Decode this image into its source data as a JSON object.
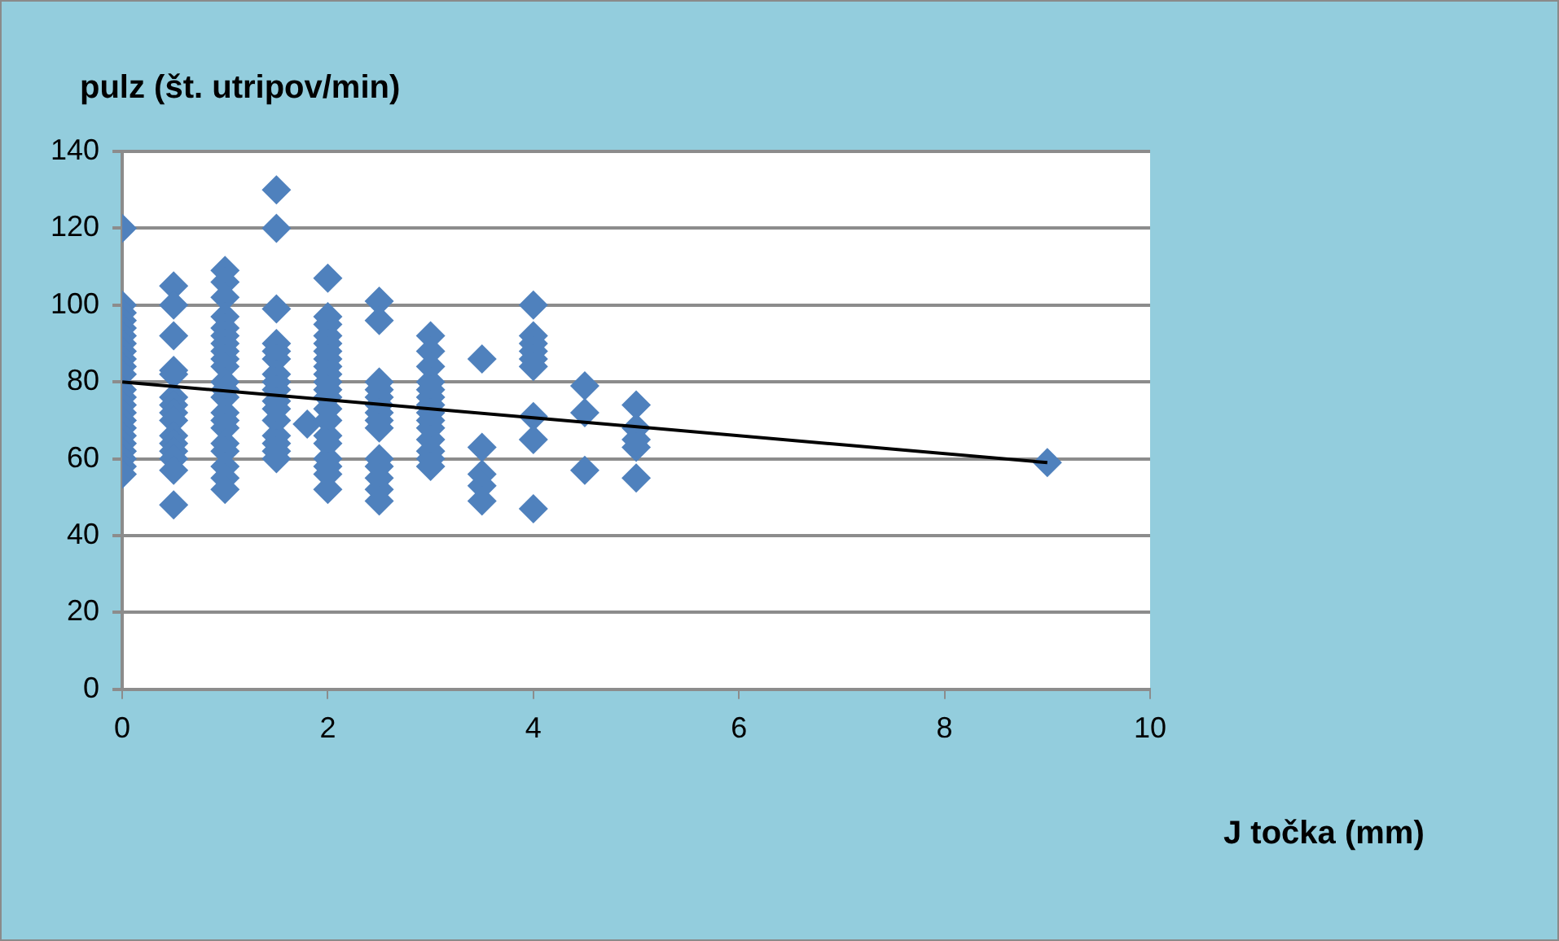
{
  "chart_data": {
    "type": "scatter",
    "xlabel": "J točka (mm)",
    "ylabel": "pulz (št. utripov/min)",
    "xlim": [
      0,
      10
    ],
    "xticks": [
      0,
      2,
      4,
      6,
      8,
      10
    ],
    "ylim": [
      0,
      140
    ],
    "yticks": [
      0,
      20,
      40,
      60,
      80,
      100,
      120,
      140
    ],
    "grid": "y",
    "legend": false,
    "marker": "diamond",
    "series": [
      {
        "type": "scatter",
        "color": "#4f81bd",
        "x": [
          0,
          0,
          0,
          0,
          0,
          0,
          0,
          0,
          0,
          0,
          0,
          0,
          0,
          0,
          0,
          0,
          0,
          0,
          0,
          0,
          0,
          0,
          0,
          0.5,
          0.5,
          0.5,
          0.5,
          0.5,
          0.5,
          0.5,
          0.5,
          0.5,
          0.5,
          0.5,
          0.5,
          0.5,
          0.5,
          0.5,
          1,
          1,
          1,
          1,
          1,
          1,
          1,
          1,
          1,
          1,
          1,
          1,
          1,
          1,
          1,
          1,
          1,
          1,
          1,
          1,
          1,
          1.5,
          1.5,
          1.5,
          1.5,
          1.5,
          1.5,
          1.5,
          1.5,
          1.5,
          1.5,
          1.5,
          1.5,
          1.5,
          1.5,
          1.5,
          1.5,
          1.8,
          2,
          2,
          2,
          2,
          2,
          2,
          2,
          2,
          2,
          2,
          2,
          2,
          2,
          2,
          2,
          2,
          2,
          2,
          2,
          2,
          2.5,
          2.5,
          2.5,
          2.5,
          2.5,
          2.5,
          2.5,
          2.5,
          2.5,
          2.5,
          2.5,
          2.5,
          2.5,
          2.5,
          3,
          3,
          3,
          3,
          3,
          3,
          3,
          3,
          3,
          3,
          3,
          3,
          3,
          3,
          3.5,
          3.5,
          3.5,
          3.5,
          3.5,
          4,
          4,
          4,
          4,
          4,
          4,
          4,
          4,
          4,
          4.5,
          4.5,
          4.5,
          5,
          5,
          5,
          5,
          5,
          9
        ],
        "values": [
          120,
          100,
          98,
          96,
          94,
          92,
          90,
          88,
          86,
          84,
          82,
          78,
          76,
          74,
          72,
          70,
          68,
          66,
          64,
          62,
          60,
          58,
          56,
          105,
          100,
          92,
          83,
          82,
          76,
          74,
          72,
          70,
          66,
          64,
          62,
          60,
          57,
          48,
          109,
          106,
          102,
          97,
          94,
          92,
          90,
          88,
          86,
          84,
          80,
          78,
          76,
          72,
          70,
          68,
          64,
          62,
          58,
          55,
          52,
          130,
          120,
          99,
          90,
          88,
          86,
          82,
          80,
          78,
          75,
          73,
          70,
          66,
          64,
          62,
          60,
          69,
          107,
          97,
          95,
          92,
          90,
          88,
          86,
          84,
          82,
          80,
          78,
          76,
          73,
          70,
          66,
          64,
          60,
          58,
          56,
          52,
          101,
          96,
          80,
          78,
          76,
          74,
          72,
          70,
          68,
          60,
          58,
          55,
          52,
          49,
          92,
          88,
          84,
          80,
          78,
          76,
          74,
          72,
          70,
          68,
          65,
          62,
          60,
          58,
          86,
          63,
          56,
          53,
          49,
          100,
          92,
          90,
          88,
          86,
          84,
          71,
          65,
          47,
          79,
          72,
          57,
          74,
          68,
          65,
          63,
          55,
          59
        ]
      },
      {
        "type": "line",
        "color": "#000000",
        "marker": "none",
        "x": [
          0,
          9
        ],
        "values": [
          80,
          59
        ]
      }
    ]
  }
}
